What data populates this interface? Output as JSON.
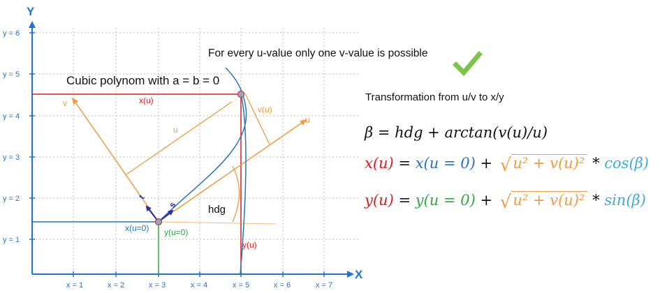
{
  "axes": {
    "x_axis_label": "X",
    "y_axis_label": "Y",
    "x_ticks": [
      "x = 1",
      "x = 2",
      "x = 3",
      "x = 4",
      "x = 5",
      "x = 6",
      "x = 7"
    ],
    "y_ticks": [
      "y = 1",
      "y = 2",
      "y = 3",
      "y = 4",
      "y = 5",
      "y = 6"
    ]
  },
  "labels": {
    "unique_note": "For every u-value only one v-value is possible",
    "cubic_caption": "Cubic polynom with a = b = 0",
    "xu": "x(u)",
    "yu": "y(u)",
    "vu": "v(u)",
    "u_axis": "u",
    "v_axis": "v",
    "u_dimension": "u",
    "x_u0": "x(u=0)",
    "y_u0": "y(u=0)",
    "hdg": "hdg",
    "t_vec": "t",
    "s_vec": "s"
  },
  "transformation": {
    "title": "Transformation from u/v to x/y",
    "eq_beta": {
      "lhs": "β",
      "rhs": "= hdg + arctan(v(u)/u)"
    },
    "eq_x": {
      "lhs": "x(u)",
      "eq": " = ",
      "base": "x(u = 0)",
      "plus": " + ",
      "radicand": "u² + v(u)²",
      "times": " * ",
      "trig": "cos(β)"
    },
    "eq_y": {
      "lhs": "y(u)",
      "eq": " = ",
      "base": "y(u = 0)",
      "plus": " + ",
      "radicand": "u² + v(u)²",
      "times": " * ",
      "trig": "sin(β)"
    }
  },
  "colors": {
    "red": "#e01b1b",
    "blue": "#2a73ba",
    "green": "#2eaa3c",
    "orange": "#f19a3e",
    "cyan": "#3ea8e0",
    "axis_blue": "#1e73d8",
    "check_green": "#7ec34a"
  },
  "icons": [
    "checkmark-icon"
  ]
}
